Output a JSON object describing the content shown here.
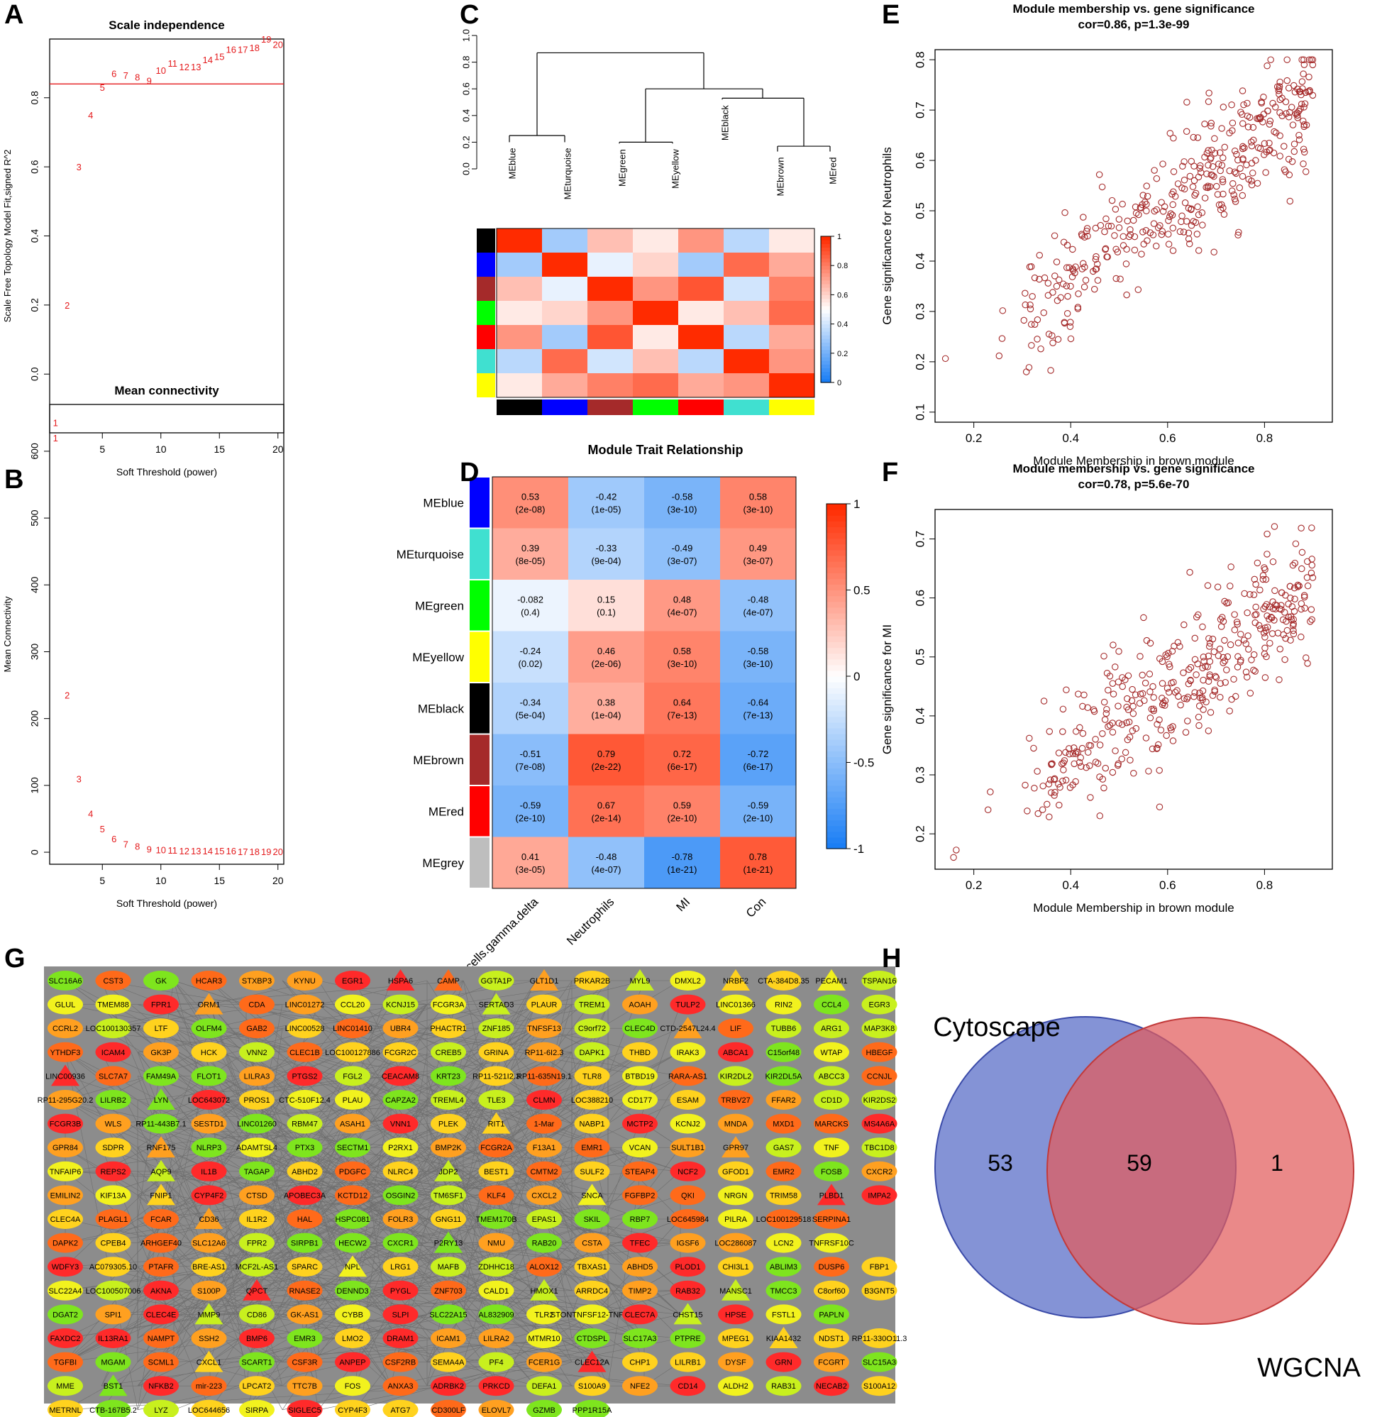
{
  "panel_labels": {
    "A": "A",
    "B": "B",
    "C": "C",
    "D": "D",
    "E": "E",
    "F": "F",
    "G": "G",
    "H": "H"
  },
  "colors": {
    "threshold_line": "#e41a1c",
    "point_red": "#e41a1c",
    "scatter_point": "#a52a2a",
    "heat_pos": "#ff2b00",
    "heat_neg": "#1a7ef5",
    "heat_mid": "#ffffff"
  },
  "chart_data": [
    {
      "id": "A",
      "type": "scatter",
      "title": "Scale independence",
      "xlabel": "Soft Threshold (power)",
      "ylabel": "Scale Free Topology Model Fit,signed R^2",
      "xlim": [
        0.5,
        20.5
      ],
      "ylim": [
        -0.17,
        0.97
      ],
      "xticks": [
        5,
        10,
        15,
        20
      ],
      "yticks": [
        0.0,
        0.2,
        0.4,
        0.6,
        0.8
      ],
      "ytick_labels": [
        "0.0",
        "0.2",
        "0.4",
        "0.6",
        "0.8"
      ],
      "hline": 0.84,
      "x": [
        1,
        2,
        3,
        4,
        5,
        6,
        7,
        8,
        9,
        10,
        11,
        12,
        13,
        14,
        15,
        16,
        17,
        18,
        19,
        20
      ],
      "y": [
        -0.14,
        0.2,
        0.6,
        0.75,
        0.83,
        0.87,
        0.865,
        0.86,
        0.85,
        0.88,
        0.9,
        0.89,
        0.89,
        0.91,
        0.92,
        0.94,
        0.94,
        0.945,
        0.97,
        0.955
      ],
      "labels": [
        "1",
        "2",
        "3",
        "4",
        "5",
        "6",
        "7",
        "8",
        "9",
        "10",
        "11",
        "12",
        "13",
        "14",
        "15",
        "16",
        "17",
        "18",
        "19",
        "20"
      ]
    },
    {
      "id": "B",
      "type": "scatter",
      "title": "Mean connectivity",
      "xlabel": "Soft Threshold (power)",
      "ylabel": "Mean Connectivity",
      "xlim": [
        0.5,
        20.5
      ],
      "ylim": [
        -18,
        670
      ],
      "xticks": [
        5,
        10,
        15,
        20
      ],
      "yticks": [
        0,
        100,
        200,
        300,
        400,
        500,
        600
      ],
      "ytick_labels": [
        "0",
        "100",
        "200",
        "300",
        "400",
        "500",
        "600"
      ],
      "x": [
        1,
        2,
        3,
        4,
        5,
        6,
        7,
        8,
        9,
        10,
        11,
        12,
        13,
        14,
        15,
        16,
        17,
        18,
        19,
        20
      ],
      "y": [
        620,
        235,
        110,
        58,
        35,
        20,
        12,
        9,
        5,
        4,
        3,
        2,
        2,
        2,
        2,
        2,
        1,
        1,
        1,
        1
      ],
      "labels": [
        "1",
        "2",
        "3",
        "4",
        "5",
        "6",
        "7",
        "8",
        "9",
        "10",
        "11",
        "12",
        "13",
        "14",
        "15",
        "16",
        "17",
        "18",
        "19",
        "20"
      ]
    },
    {
      "id": "C",
      "type": "heatmap",
      "dendrogram_yticks": [
        "0.0",
        "0.2",
        "0.4",
        "0.6",
        "0.8",
        "1.0"
      ],
      "modules": [
        "MEblue",
        "MEturquoise",
        "MEgreen",
        "MEyellow",
        "MEblack",
        "MEbrown",
        "MEred"
      ],
      "row_colors": [
        "#000000",
        "#0000ff",
        "#a52a2a",
        "#00ff00",
        "#ff0000",
        "#40e0d0",
        "#ffff00"
      ],
      "col_colors": [
        "#000000",
        "#0000ff",
        "#a52a2a",
        "#00ff00",
        "#ff0000",
        "#40e0d0",
        "#ffff00"
      ],
      "matrix": [
        [
          1.0,
          0.3,
          0.65,
          0.55,
          0.75,
          0.35,
          0.55
        ],
        [
          0.3,
          1.0,
          0.45,
          0.6,
          0.3,
          0.85,
          0.7
        ],
        [
          0.65,
          0.45,
          1.0,
          0.75,
          0.9,
          0.4,
          0.8
        ],
        [
          0.55,
          0.6,
          0.75,
          1.0,
          0.55,
          0.65,
          0.85
        ],
        [
          0.75,
          0.3,
          0.9,
          0.55,
          1.0,
          0.35,
          0.7
        ],
        [
          0.35,
          0.85,
          0.4,
          0.65,
          0.35,
          1.0,
          0.75
        ],
        [
          0.55,
          0.7,
          0.8,
          0.85,
          0.7,
          0.75,
          1.0
        ]
      ],
      "legend_ticks": [
        "0",
        "0.2",
        "0.4",
        "0.6",
        "0.8",
        "1"
      ]
    },
    {
      "id": "D",
      "type": "heatmap",
      "title": "Module Trait Relationship",
      "rows": [
        "MEblue",
        "MEturquoise",
        "MEgreen",
        "MEyellow",
        "MEblack",
        "MEbrown",
        "MEred",
        "MEgrey"
      ],
      "row_colors": [
        "#0000ff",
        "#40e0d0",
        "#00ff00",
        "#ffff00",
        "#000000",
        "#a52a2a",
        "#ff0000",
        "#bebebe"
      ],
      "columns": [
        "T.cells.gamma.delta",
        "Neutrophils",
        "MI",
        "Con"
      ],
      "values": [
        [
          0.53,
          -0.42,
          -0.58,
          0.58
        ],
        [
          0.39,
          -0.33,
          -0.49,
          0.49
        ],
        [
          -0.082,
          0.15,
          0.48,
          -0.48
        ],
        [
          -0.24,
          0.46,
          0.58,
          -0.58
        ],
        [
          -0.34,
          0.38,
          0.64,
          -0.64
        ],
        [
          -0.51,
          0.79,
          0.72,
          -0.72
        ],
        [
          -0.59,
          0.67,
          0.59,
          -0.59
        ],
        [
          0.41,
          -0.48,
          -0.78,
          0.78
        ]
      ],
      "cell_text": [
        [
          "0.53",
          "-0.42",
          "-0.58",
          "0.58"
        ],
        [
          "0.39",
          "-0.33",
          "-0.49",
          "0.49"
        ],
        [
          "-0.082",
          "0.15",
          "0.48",
          "-0.48"
        ],
        [
          "-0.24",
          "0.46",
          "0.58",
          "-0.58"
        ],
        [
          "-0.34",
          "0.38",
          "0.64",
          "-0.64"
        ],
        [
          "-0.51",
          "0.79",
          "0.72",
          "-0.72"
        ],
        [
          "-0.59",
          "0.67",
          "0.59",
          "-0.59"
        ],
        [
          "0.41",
          "-0.48",
          "-0.78",
          "0.78"
        ]
      ],
      "pvalues": [
        [
          "(2e-08)",
          "(1e-05)",
          "(3e-10)",
          "(3e-10)"
        ],
        [
          "(8e-05)",
          "(9e-04)",
          "(3e-07)",
          "(3e-07)"
        ],
        [
          "(0.4)",
          "(0.1)",
          "(4e-07)",
          "(4e-07)"
        ],
        [
          "(0.02)",
          "(2e-06)",
          "(3e-10)",
          "(3e-10)"
        ],
        [
          "(5e-04)",
          "(1e-04)",
          "(7e-13)",
          "(7e-13)"
        ],
        [
          "(7e-08)",
          "(2e-22)",
          "(6e-17)",
          "(6e-17)"
        ],
        [
          "(2e-10)",
          "(2e-14)",
          "(2e-10)",
          "(2e-10)"
        ],
        [
          "(3e-05)",
          "(4e-07)",
          "(1e-21)",
          "(1e-21)"
        ]
      ],
      "legend_ticks": [
        "1",
        "0.5",
        "0",
        "-0.5",
        "-1"
      ]
    },
    {
      "id": "E",
      "type": "scatter",
      "title": "Module membership vs. gene significance",
      "subtitle": "cor=0.86, p=1.3e-99",
      "xlabel": "Module Membership in brown module",
      "ylabel": "Gene significance for Neutrophils",
      "xlim": [
        0.12,
        0.94
      ],
      "ylim": [
        0.08,
        0.82
      ],
      "xticks": [
        0.2,
        0.4,
        0.6,
        0.8
      ],
      "xtick_labels": [
        "0.2",
        "0.4",
        "0.6",
        "0.8"
      ],
      "yticks": [
        0.1,
        0.2,
        0.3,
        0.4,
        0.5,
        0.6,
        0.7,
        0.8
      ],
      "ytick_labels": [
        "0.1",
        "0.2",
        "0.3",
        "0.4",
        "0.5",
        "0.6",
        "0.7",
        "0.8"
      ],
      "n_points": 400,
      "slope": 0.72,
      "intercept": 0.08,
      "noise": 0.06
    },
    {
      "id": "F",
      "type": "scatter",
      "title": "Module membership vs. gene significance",
      "subtitle": "cor=0.78, p=5.6e-70",
      "xlabel": "Module Membership in brown module",
      "ylabel": "Gene significance for MI",
      "xlim": [
        0.12,
        0.94
      ],
      "ylim": [
        0.14,
        0.75
      ],
      "xticks": [
        0.2,
        0.4,
        0.6,
        0.8
      ],
      "xtick_labels": [
        "0.2",
        "0.4",
        "0.6",
        "0.8"
      ],
      "yticks": [
        0.2,
        0.3,
        0.4,
        0.5,
        0.6,
        0.7
      ],
      "ytick_labels": [
        "0.2",
        "0.3",
        "0.4",
        "0.5",
        "0.6",
        "0.7"
      ],
      "n_points": 400,
      "slope": 0.58,
      "intercept": 0.1,
      "noise": 0.055
    }
  ],
  "network": {
    "genes": [
      "SLC16A6",
      "CST3",
      "GK",
      "HCAR3",
      "STXBP3",
      "KYNU",
      "EGR1",
      "HSPA6",
      "CAMP",
      "GGTA1P",
      "GLT1D1",
      "PRKAR2B",
      "MYL9",
      "DMXL2",
      "NRBF2",
      "CTA-384D8.35",
      "PECAM1",
      "TSPAN16",
      "GLUL",
      "TMEM88",
      "FPR1",
      "ORM1",
      "CDA",
      "LINC01272",
      "CCL20",
      "KCNJ15",
      "FCGR3A",
      "SERTAD3",
      "PLAUR",
      "TREM1",
      "AOAH",
      "TULP2",
      "LINC01366",
      "RIN2",
      "CCL4",
      "EGR3",
      "CCRL2",
      "LOC100130357",
      "LTF",
      "OLFM4",
      "GAB2",
      "LINC00528",
      "LINC01410",
      "UBR4",
      "PHACTR1",
      "ZNF185",
      "TNFSF13",
      "C9orf72",
      "CLEC4D",
      "CTD-2547L24.4",
      "LIF",
      "TUBB6",
      "ARG1",
      "MAP3K8",
      "YTHDF3",
      "ICAM4",
      "GK3P",
      "HCK",
      "VNN2",
      "CLEC1B",
      "LOC100127886",
      "FCGR2C",
      "CREB5",
      "GRINA",
      "RP11-6I2.3",
      "DAPK1",
      "THBD",
      "IRAK3",
      "ABCA1",
      "C15orf48",
      "WTAP",
      "HBEGF",
      "LINC00936",
      "SLC7A7",
      "FAM49A",
      "FLOT1",
      "LILRA3",
      "PTGS2",
      "FGL2",
      "CEACAM8",
      "KRT23",
      "RP11-521I2.3",
      "RP11-635N19.1",
      "TLR8",
      "BTBD19",
      "RARA-AS1",
      "KIR2DL2",
      "KIR2DL5A",
      "ABCC3",
      "CCNJL",
      "RP11-295G20.2",
      "LILRB2",
      "LYN",
      "LOC643072",
      "PROS1",
      "CTC-510F12.4",
      "PLAU",
      "CAPZA2",
      "TREML4",
      "TLE3",
      "CLMN",
      "LOC388210",
      "CD177",
      "ESAM",
      "TRBV27",
      "FFAR2",
      "CD1D",
      "KIR2DS2",
      "FCGR3B",
      "WLS",
      "RP11-443B7.1",
      "SESTD1",
      "LINC01260",
      "RBM47",
      "ASAH1",
      "VNN1",
      "PLEK",
      "RIT1",
      "1-Mar",
      "NABP1",
      "MCTP2",
      "KCNJ2",
      "MNDA",
      "MXD1",
      "MARCKS",
      "MS4A6A",
      "GPR84",
      "SDPR",
      "RNF175",
      "NLRP3",
      "ADAMTSL4",
      "PTX3",
      "SECTM1",
      "P2RX1",
      "BMP2K",
      "FCGR2A",
      "F13A1",
      "EMR1",
      "VCAN",
      "SULT1B1",
      "GPR97",
      "GAS7",
      "TNF",
      "TBC1D8",
      "TNFAIP6",
      "REPS2",
      "AQP9",
      "IL1B",
      "TAGAP",
      "ABHD2",
      "PDGFC",
      "NLRC4",
      "JDP2",
      "BEST1",
      "CMTM2",
      "SULF2",
      "STEAP4",
      "NCF2",
      "GFOD1",
      "EMR2",
      "FOSB",
      "CXCR2",
      "EMILIN2",
      "KIF13A",
      "FNIP1",
      "CYP4F2",
      "CTSD",
      "APOBEC3A",
      "KCTD12",
      "OSGIN2",
      "TM6SF1",
      "KLF4",
      "CXCL2",
      "SNCA",
      "FGFBP2",
      "QKI",
      "NRGN",
      "TRIM58",
      "PLBD1",
      "IMPA2",
      "CLEC4A",
      "PLAGL1",
      "FCAR",
      "CD36",
      "IL1R2",
      "HAL",
      "HSPC081",
      "FOLR3",
      "GNG11",
      "TMEM170B",
      "EPAS1",
      "SKIL",
      "RBP7",
      "LOC645984",
      "PILRA",
      "LOC100129518",
      "SERPINA1",
      "",
      "DAPK2",
      "CPEB4",
      "ARHGEF40",
      "SLC12A6",
      "FPR2",
      "SIRPB1",
      "HECW2",
      "CXCR1",
      "P2RY13",
      "NMU",
      "RAB20",
      "CSTA",
      "TFEC",
      "IGSF6",
      "LOC286087",
      "LCN2",
      "TNFRSF10C",
      "",
      "WDFY3",
      "AC079305.10",
      "PTAFR",
      "BRE-AS1",
      "MCF2L-AS1",
      "SPARC",
      "NPL",
      "LRG1",
      "MAFB",
      "ZDHHC18",
      "ALOX12",
      "TBXAS1",
      "ABHD5",
      "PLOD1",
      "CHI3L1",
      "ABLIM3",
      "DUSP6",
      "FBP1",
      "SLC22A4",
      "LOC100507006",
      "AKNA",
      "S100P",
      "QPCT",
      "RNASE2",
      "DENND3",
      "PYGL",
      "ZNF703",
      "CALD1",
      "HMOX1",
      "ARRDC4",
      "TIMP2",
      "RAB32",
      "MANSC1",
      "TMCC3",
      "C8orf60",
      "B3GNT5",
      "DGAT2",
      "SPI1",
      "CLEC4E",
      "MMP9",
      "CD86",
      "GK-AS1",
      "CYBB",
      "SLPI",
      "SLC22A15",
      "AL832909",
      "TLR2",
      "STONTNFSF12-TNFSF",
      "CLEC7A",
      "CHST15",
      "HPSE",
      "FSTL1",
      "PAPLN",
      "",
      "FAXDC2",
      "IL13RA1",
      "NAMPT",
      "SSH2",
      "BMP6",
      "EMR3",
      "LMO2",
      "DRAM1",
      "ICAM1",
      "LILRA2",
      "MTMR10",
      "CTDSPL",
      "SLC17A3",
      "PTPRE",
      "MPEG1",
      "KIAA1432",
      "NDST1",
      "RP11-330O11.3",
      "TGFBI",
      "MGAM",
      "SCML1",
      "CXCL1",
      "SCART1",
      "CSF3R",
      "ANPEP",
      "CSF2RB",
      "SEMA4A",
      "PF4",
      "FCER1G",
      "CLEC12A",
      "CHP1",
      "LILRB1",
      "DYSF",
      "GRN",
      "FCGRT",
      "SLC15A3",
      "MME",
      "BST1",
      "NFKB2",
      "mir-223",
      "LPCAT2",
      "TTC7B",
      "FOS",
      "ANXA3",
      "ADRBK2",
      "PRKCD",
      "DEFA1",
      "S100A9",
      "NFE2",
      "CD14",
      "ALDH2",
      "RAB31",
      "NECAB2",
      "S100A12",
      "METRNL",
      "CTB-167B5.2",
      "LYZ",
      "LOC644656",
      "SIRPA",
      "SIGLEC5",
      "CYP4F3",
      "ATG7",
      "CD300LF",
      "ELOVL7",
      "GZMB",
      "PPP1R15A",
      "",
      "",
      "",
      "",
      "",
      ""
    ]
  },
  "venn": {
    "left_label": "Cytoscape",
    "right_label": "WGCNA",
    "left_only": "53",
    "overlap": "59",
    "right_only": "1",
    "left_color": "#5b6fc8",
    "right_color": "#e25b5b"
  }
}
